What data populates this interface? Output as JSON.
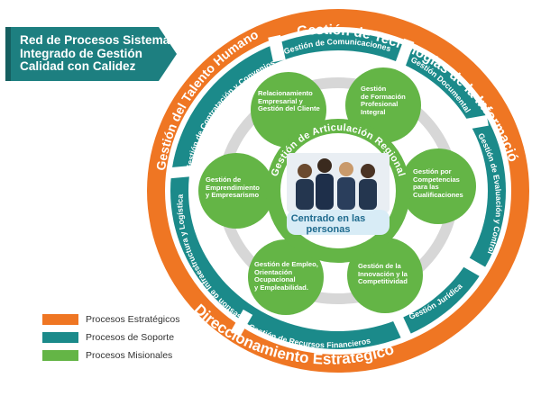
{
  "title": {
    "lines": [
      "Red de Procesos Sistema",
      "Integrado de Gestión",
      "Calidad con Calidez"
    ]
  },
  "colors": {
    "orange": "#ef7623",
    "teal": "#1b8a8a",
    "green": "#64b546",
    "grey_ring": "#d7d7d7",
    "title_bg": "#1d7f80"
  },
  "strategic_ring": {
    "top_right": "Gestión de Tecnologías de la Información",
    "top_left": "Gestión del Talento Humano",
    "bottom": "Direccionamiento Estratégico"
  },
  "support_ring": {
    "contracting": "Gestión de Contratación y Convenios",
    "communications": "Gestión de Comunicaciones",
    "documentation": "Gestión Documental",
    "evaluation": "Gestión de Evaluación y Control",
    "legal": "Gestión Jurídica",
    "financial": "Gestión de Recursos Financieros",
    "infrastructure": "Gestión de Infraestructura y Logística"
  },
  "mission_nodes": {
    "relationship": [
      "Relacionamiento",
      "Empresarial y",
      "Gestión del Cliente"
    ],
    "training": [
      "Gestión",
      "de Formación",
      "Profesional",
      "Integral"
    ],
    "competencies": [
      "Gestión por",
      "Competencias",
      "para las",
      "Cualificaciones"
    ],
    "innovation": [
      "Gestión de la",
      "Innovación y la",
      "Competitividad"
    ],
    "employment": [
      "Gestión de Empleo,",
      "Orientación",
      "Ocupacional",
      "y Empleabilidad."
    ],
    "entrepreneurship": [
      "Gestión de",
      "Emprendimiento",
      "y Empresarismo"
    ]
  },
  "center": {
    "arc_label": "Gestión de Articulación Regional",
    "label_lines": [
      "Centrado en las",
      "personas"
    ],
    "photo_icon": "people-photo-icon"
  },
  "legend": [
    {
      "label": "Procesos Estratégicos",
      "color": "#ef7623"
    },
    {
      "label": "Procesos de Soporte",
      "color": "#1b8a8a"
    },
    {
      "label": "Procesos Misionales",
      "color": "#64b546"
    }
  ]
}
